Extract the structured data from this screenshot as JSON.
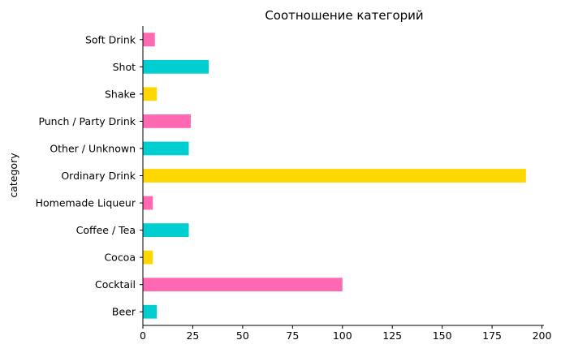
{
  "chart_data": {
    "type": "bar",
    "orientation": "horizontal",
    "title": "Соотношение категорий",
    "xlabel": "",
    "ylabel": "category",
    "categories": [
      "Beer",
      "Cocktail",
      "Cocoa",
      "Coffee / Tea",
      "Homemade Liqueur",
      "Ordinary Drink",
      "Other / Unknown",
      "Punch / Party Drink",
      "Shake",
      "Shot",
      "Soft Drink"
    ],
    "values": [
      7,
      100,
      5,
      23,
      5,
      192,
      23,
      24,
      7,
      33,
      6
    ],
    "colors": [
      "#00CED1",
      "#FF69B4",
      "#FFD700",
      "#00CED1",
      "#FF69B4",
      "#FFD700",
      "#00CED1",
      "#FF69B4",
      "#FFD700",
      "#00CED1",
      "#FF69B4"
    ],
    "xlim": [
      0,
      201
    ],
    "xticks": [
      0,
      25,
      50,
      75,
      100,
      125,
      150,
      175,
      200
    ],
    "grid": false,
    "legend": "none"
  }
}
